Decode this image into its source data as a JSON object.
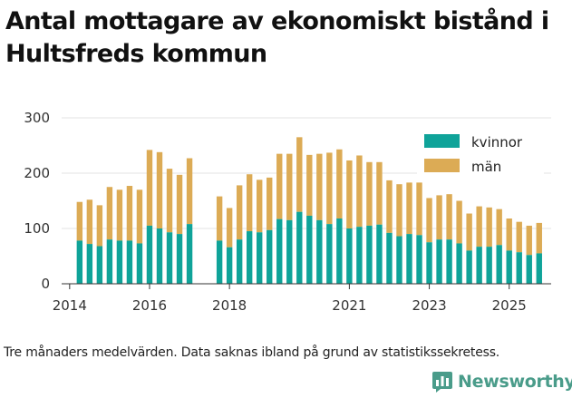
{
  "title": "Antal mottagare av ekonomiskt bistånd i Hultsfreds kommun",
  "footnote": "Tre månaders medelvärden. Data saknas ibland på grund av statistikssekretess.",
  "brand": {
    "name": "Newsworthy",
    "icon": "newsworthy-logo-icon"
  },
  "colors": {
    "kvinnor": "#0fa399",
    "man": "#dcab55",
    "grid": "#e3e3e3",
    "axis": "#333333"
  },
  "chart_data": {
    "type": "bar",
    "stacked": true,
    "title": "Antal mottagare av ekonomiskt bistånd i Hultsfreds kommun",
    "xlabel": "",
    "ylabel": "",
    "ylim": [
      0,
      300
    ],
    "y_ticks": [
      0,
      100,
      200,
      300
    ],
    "x_ticks": [
      {
        "label": "2014",
        "year": 2014.0
      },
      {
        "label": "2016",
        "year": 2016.0
      },
      {
        "label": "2018",
        "year": 2018.0
      },
      {
        "label": "2021",
        "year": 2021.0
      },
      {
        "label": "2023",
        "year": 2023.0
      },
      {
        "label": "2025",
        "year": 2025.0
      }
    ],
    "legend": {
      "placement": "top-right",
      "entries": [
        "kvinnor",
        "män"
      ]
    },
    "periods": [
      {
        "year": 2014.25,
        "kvinnor": 78,
        "total": 148
      },
      {
        "year": 2014.5,
        "kvinnor": 72,
        "total": 152
      },
      {
        "year": 2014.75,
        "kvinnor": 68,
        "total": 142
      },
      {
        "year": 2015.0,
        "kvinnor": 80,
        "total": 175
      },
      {
        "year": 2015.25,
        "kvinnor": 78,
        "total": 170
      },
      {
        "year": 2015.5,
        "kvinnor": 78,
        "total": 177
      },
      {
        "year": 2015.75,
        "kvinnor": 73,
        "total": 170
      },
      {
        "year": 2016.0,
        "kvinnor": 105,
        "total": 242
      },
      {
        "year": 2016.25,
        "kvinnor": 100,
        "total": 238
      },
      {
        "year": 2016.5,
        "kvinnor": 93,
        "total": 208
      },
      {
        "year": 2016.75,
        "kvinnor": 90,
        "total": 197
      },
      {
        "year": 2017.0,
        "kvinnor": 108,
        "total": 227
      },
      {
        "year": 2017.75,
        "kvinnor": 78,
        "total": 158
      },
      {
        "year": 2018.0,
        "kvinnor": 66,
        "total": 137
      },
      {
        "year": 2018.25,
        "kvinnor": 80,
        "total": 178
      },
      {
        "year": 2018.5,
        "kvinnor": 95,
        "total": 198
      },
      {
        "year": 2018.75,
        "kvinnor": 93,
        "total": 188
      },
      {
        "year": 2019.0,
        "kvinnor": 97,
        "total": 192
      },
      {
        "year": 2019.25,
        "kvinnor": 117,
        "total": 235
      },
      {
        "year": 2019.5,
        "kvinnor": 115,
        "total": 235
      },
      {
        "year": 2019.75,
        "kvinnor": 130,
        "total": 265
      },
      {
        "year": 2020.0,
        "kvinnor": 123,
        "total": 233
      },
      {
        "year": 2020.25,
        "kvinnor": 115,
        "total": 235
      },
      {
        "year": 2020.5,
        "kvinnor": 108,
        "total": 237
      },
      {
        "year": 2020.75,
        "kvinnor": 118,
        "total": 243
      },
      {
        "year": 2021.0,
        "kvinnor": 100,
        "total": 223
      },
      {
        "year": 2021.25,
        "kvinnor": 103,
        "total": 232
      },
      {
        "year": 2021.5,
        "kvinnor": 105,
        "total": 220
      },
      {
        "year": 2021.75,
        "kvinnor": 107,
        "total": 220
      },
      {
        "year": 2022.0,
        "kvinnor": 92,
        "total": 187
      },
      {
        "year": 2022.25,
        "kvinnor": 86,
        "total": 180
      },
      {
        "year": 2022.5,
        "kvinnor": 90,
        "total": 183
      },
      {
        "year": 2022.75,
        "kvinnor": 88,
        "total": 183
      },
      {
        "year": 2023.0,
        "kvinnor": 75,
        "total": 155
      },
      {
        "year": 2023.25,
        "kvinnor": 80,
        "total": 160
      },
      {
        "year": 2023.5,
        "kvinnor": 80,
        "total": 162
      },
      {
        "year": 2023.75,
        "kvinnor": 73,
        "total": 150
      },
      {
        "year": 2024.0,
        "kvinnor": 60,
        "total": 127
      },
      {
        "year": 2024.25,
        "kvinnor": 67,
        "total": 140
      },
      {
        "year": 2024.5,
        "kvinnor": 67,
        "total": 138
      },
      {
        "year": 2024.75,
        "kvinnor": 70,
        "total": 135
      },
      {
        "year": 2025.0,
        "kvinnor": 60,
        "total": 118
      },
      {
        "year": 2025.25,
        "kvinnor": 57,
        "total": 112
      },
      {
        "year": 2025.5,
        "kvinnor": 52,
        "total": 105
      },
      {
        "year": 2025.75,
        "kvinnor": 55,
        "total": 110
      }
    ]
  }
}
